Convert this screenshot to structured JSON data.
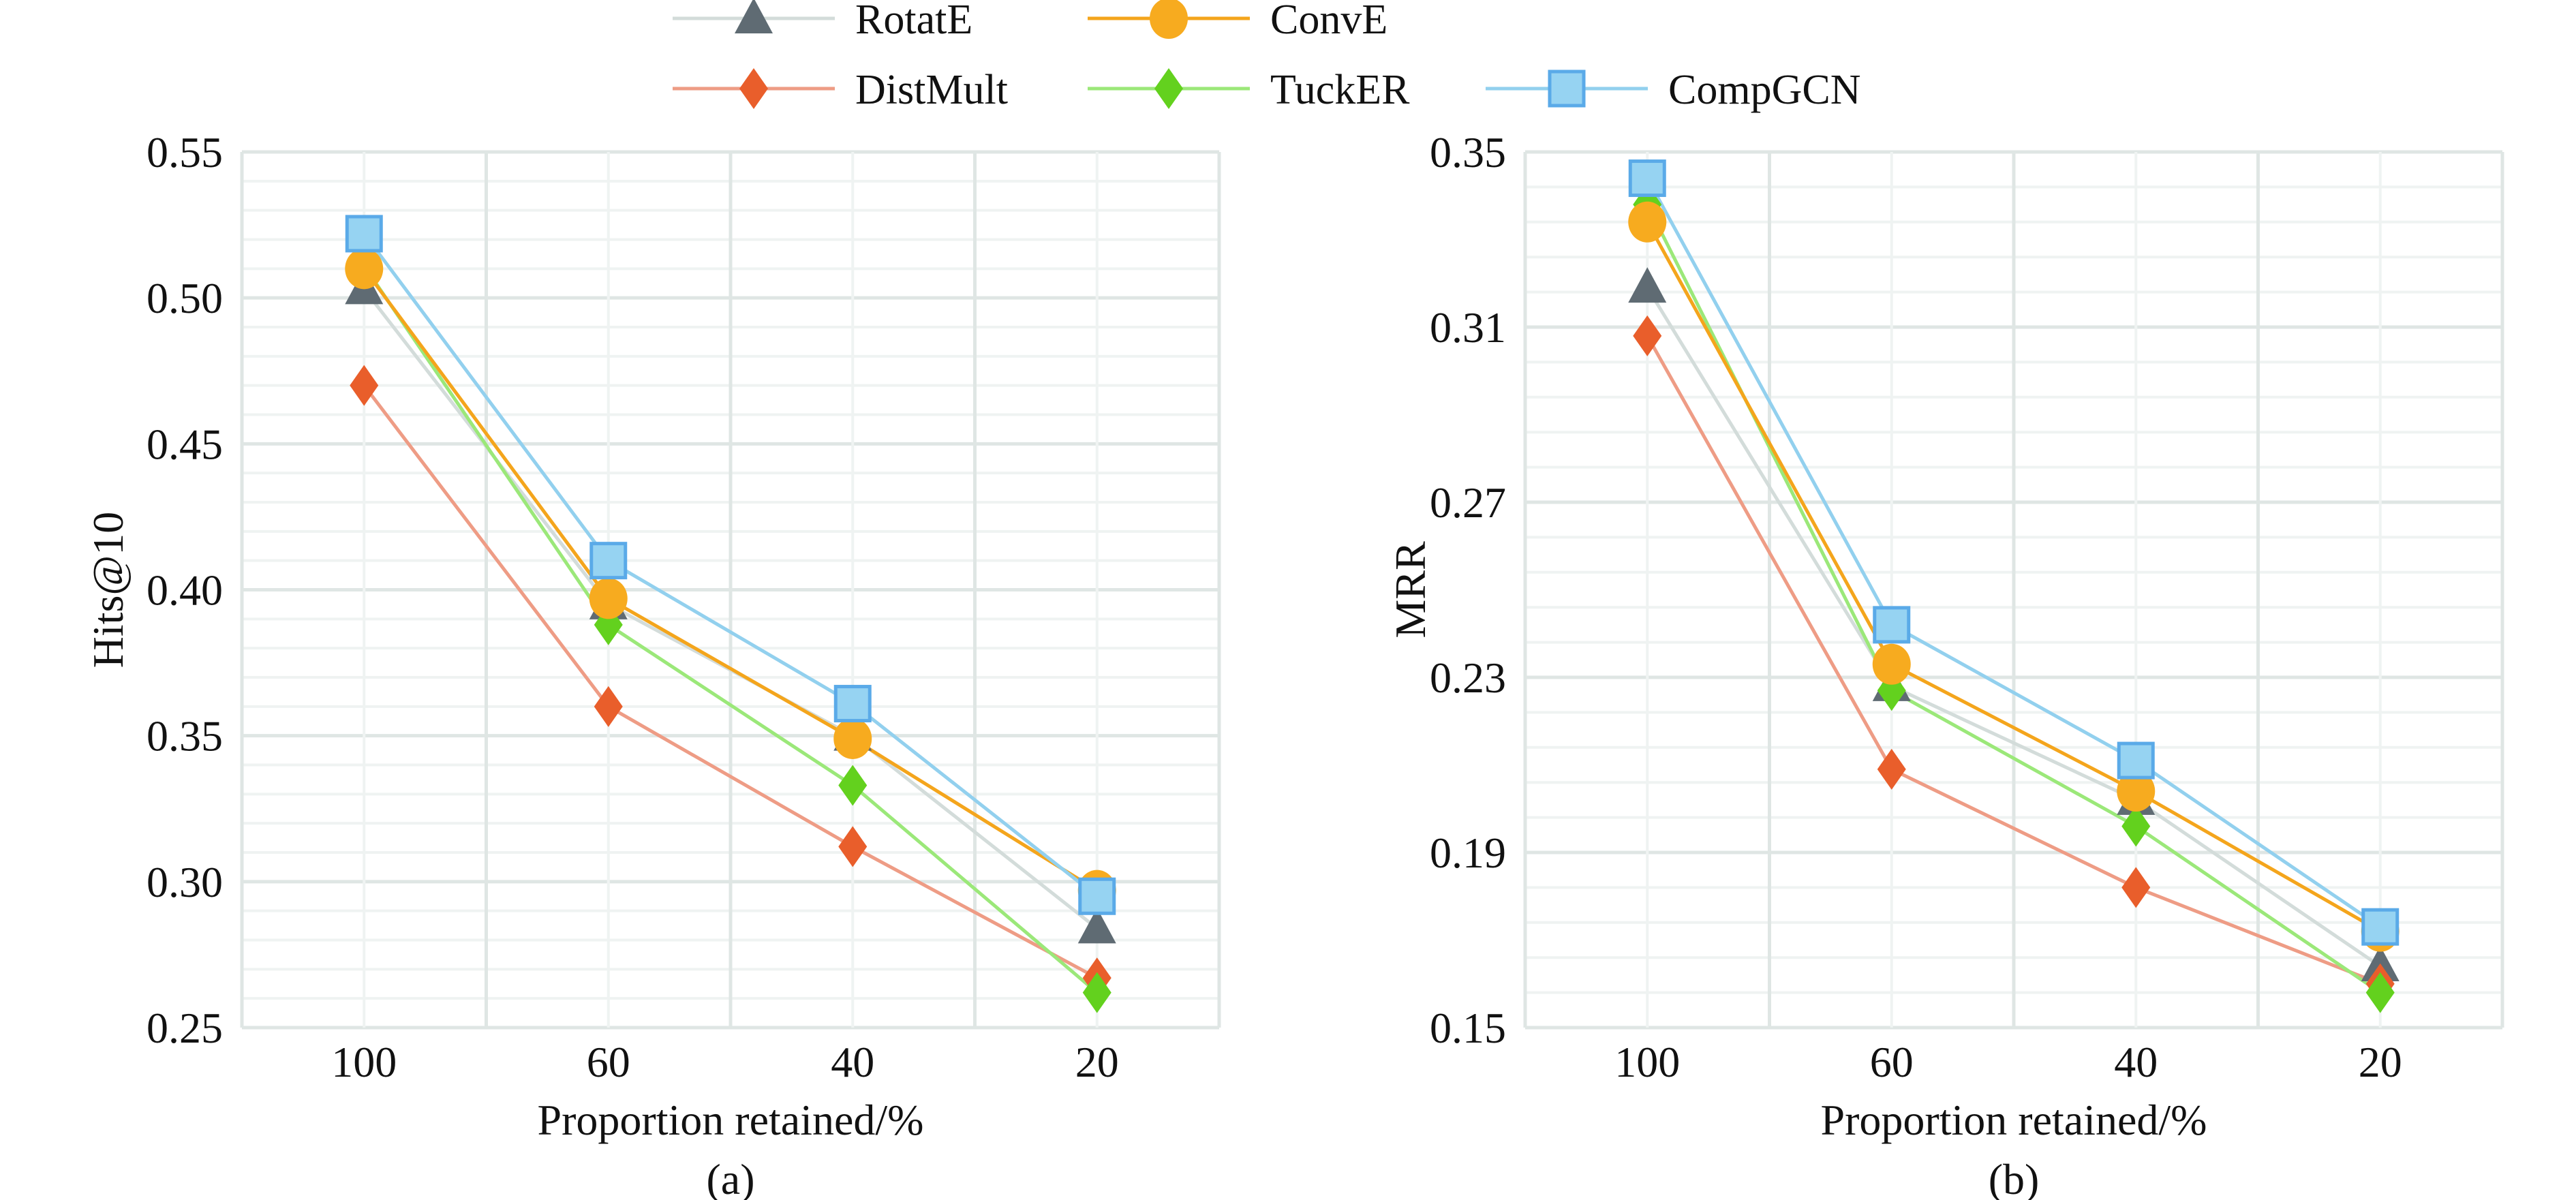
{
  "legend": [
    {
      "name": "RotatE",
      "marker": "triangle",
      "line_color": "#d3dcda",
      "marker_color": "#5f6b73"
    },
    {
      "name": "ConvE",
      "marker": "circle",
      "line_color": "#f4a51c",
      "marker_color": "#f7ab1f"
    },
    {
      "name": "DistMult",
      "marker": "diamond",
      "line_color": "#ee9c85",
      "marker_color": "#e95e2b"
    },
    {
      "name": "TuckER",
      "marker": "diamond",
      "line_color": "#9be879",
      "marker_color": "#63d11e"
    },
    {
      "name": "CompGCN",
      "marker": "square",
      "line_color": "#92d0ee",
      "marker_color": "#96d3f2"
    }
  ],
  "chart_data": [
    {
      "type": "line",
      "caption": "(a)",
      "xlabel": "Proportion retained/%",
      "ylabel": "Hits@10",
      "categories": [
        "100",
        "60",
        "40",
        "20"
      ],
      "ylim": [
        0.25,
        0.55
      ],
      "yticks": [
        "0.25",
        "0.30",
        "0.35",
        "0.40",
        "0.45",
        "0.50",
        "0.55"
      ],
      "grid": true,
      "series": [
        {
          "name": "RotatE",
          "values": [
            0.503,
            0.395,
            0.35,
            0.284
          ]
        },
        {
          "name": "DistMult",
          "values": [
            0.47,
            0.36,
            0.312,
            0.267
          ]
        },
        {
          "name": "TuckER",
          "values": [
            0.511,
            0.388,
            0.333,
            0.262
          ]
        },
        {
          "name": "ConvE",
          "values": [
            0.51,
            0.397,
            0.349,
            0.297
          ]
        },
        {
          "name": "CompGCN",
          "values": [
            0.522,
            0.41,
            0.361,
            0.295
          ]
        }
      ]
    },
    {
      "type": "line",
      "caption": "(b)",
      "xlabel": "Proportion retained/%",
      "ylabel": "MRR",
      "categories": [
        "100",
        "60",
        "40",
        "20"
      ],
      "ylim": [
        0.15,
        0.35
      ],
      "yticks": [
        "0.15",
        "0.19",
        "0.23",
        "0.27",
        "0.31",
        "0.35"
      ],
      "grid": true,
      "series": [
        {
          "name": "RotatE",
          "values": [
            0.319,
            0.228,
            0.202,
            0.164
          ]
        },
        {
          "name": "DistMult",
          "values": [
            0.308,
            0.209,
            0.182,
            0.16
          ]
        },
        {
          "name": "TuckER",
          "values": [
            0.338,
            0.227,
            0.196,
            0.158
          ]
        },
        {
          "name": "ConvE",
          "values": [
            0.334,
            0.233,
            0.204,
            0.172
          ]
        },
        {
          "name": "CompGCN",
          "values": [
            0.344,
            0.242,
            0.211,
            0.173
          ]
        }
      ]
    }
  ]
}
